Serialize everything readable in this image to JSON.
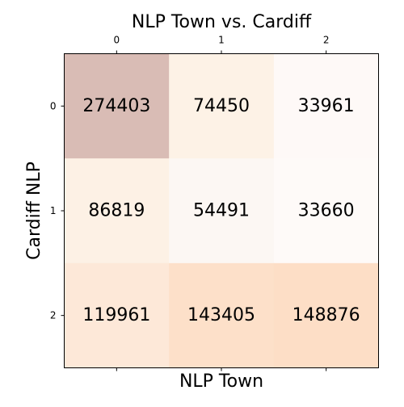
{
  "chart_data": {
    "type": "heatmap",
    "title": "NLP Town vs. Cardiff",
    "xlabel": "NLP Town",
    "ylabel": "Cardiff NLP",
    "x_categories": [
      "0",
      "1",
      "2"
    ],
    "y_categories": [
      "0",
      "1",
      "2"
    ],
    "x_ticks_position": "top",
    "values": [
      [
        274403,
        74450,
        33961
      ],
      [
        86819,
        54491,
        33660
      ],
      [
        119961,
        143405,
        148876
      ]
    ],
    "colors": [
      [
        "#d9bcb5",
        "#fdf2e6",
        "#fef9f7"
      ],
      [
        "#fdf1e5",
        "#fcf7f3",
        "#fefaf8"
      ],
      [
        "#fde8d8",
        "#fde0c9",
        "#fddec6"
      ]
    ]
  }
}
